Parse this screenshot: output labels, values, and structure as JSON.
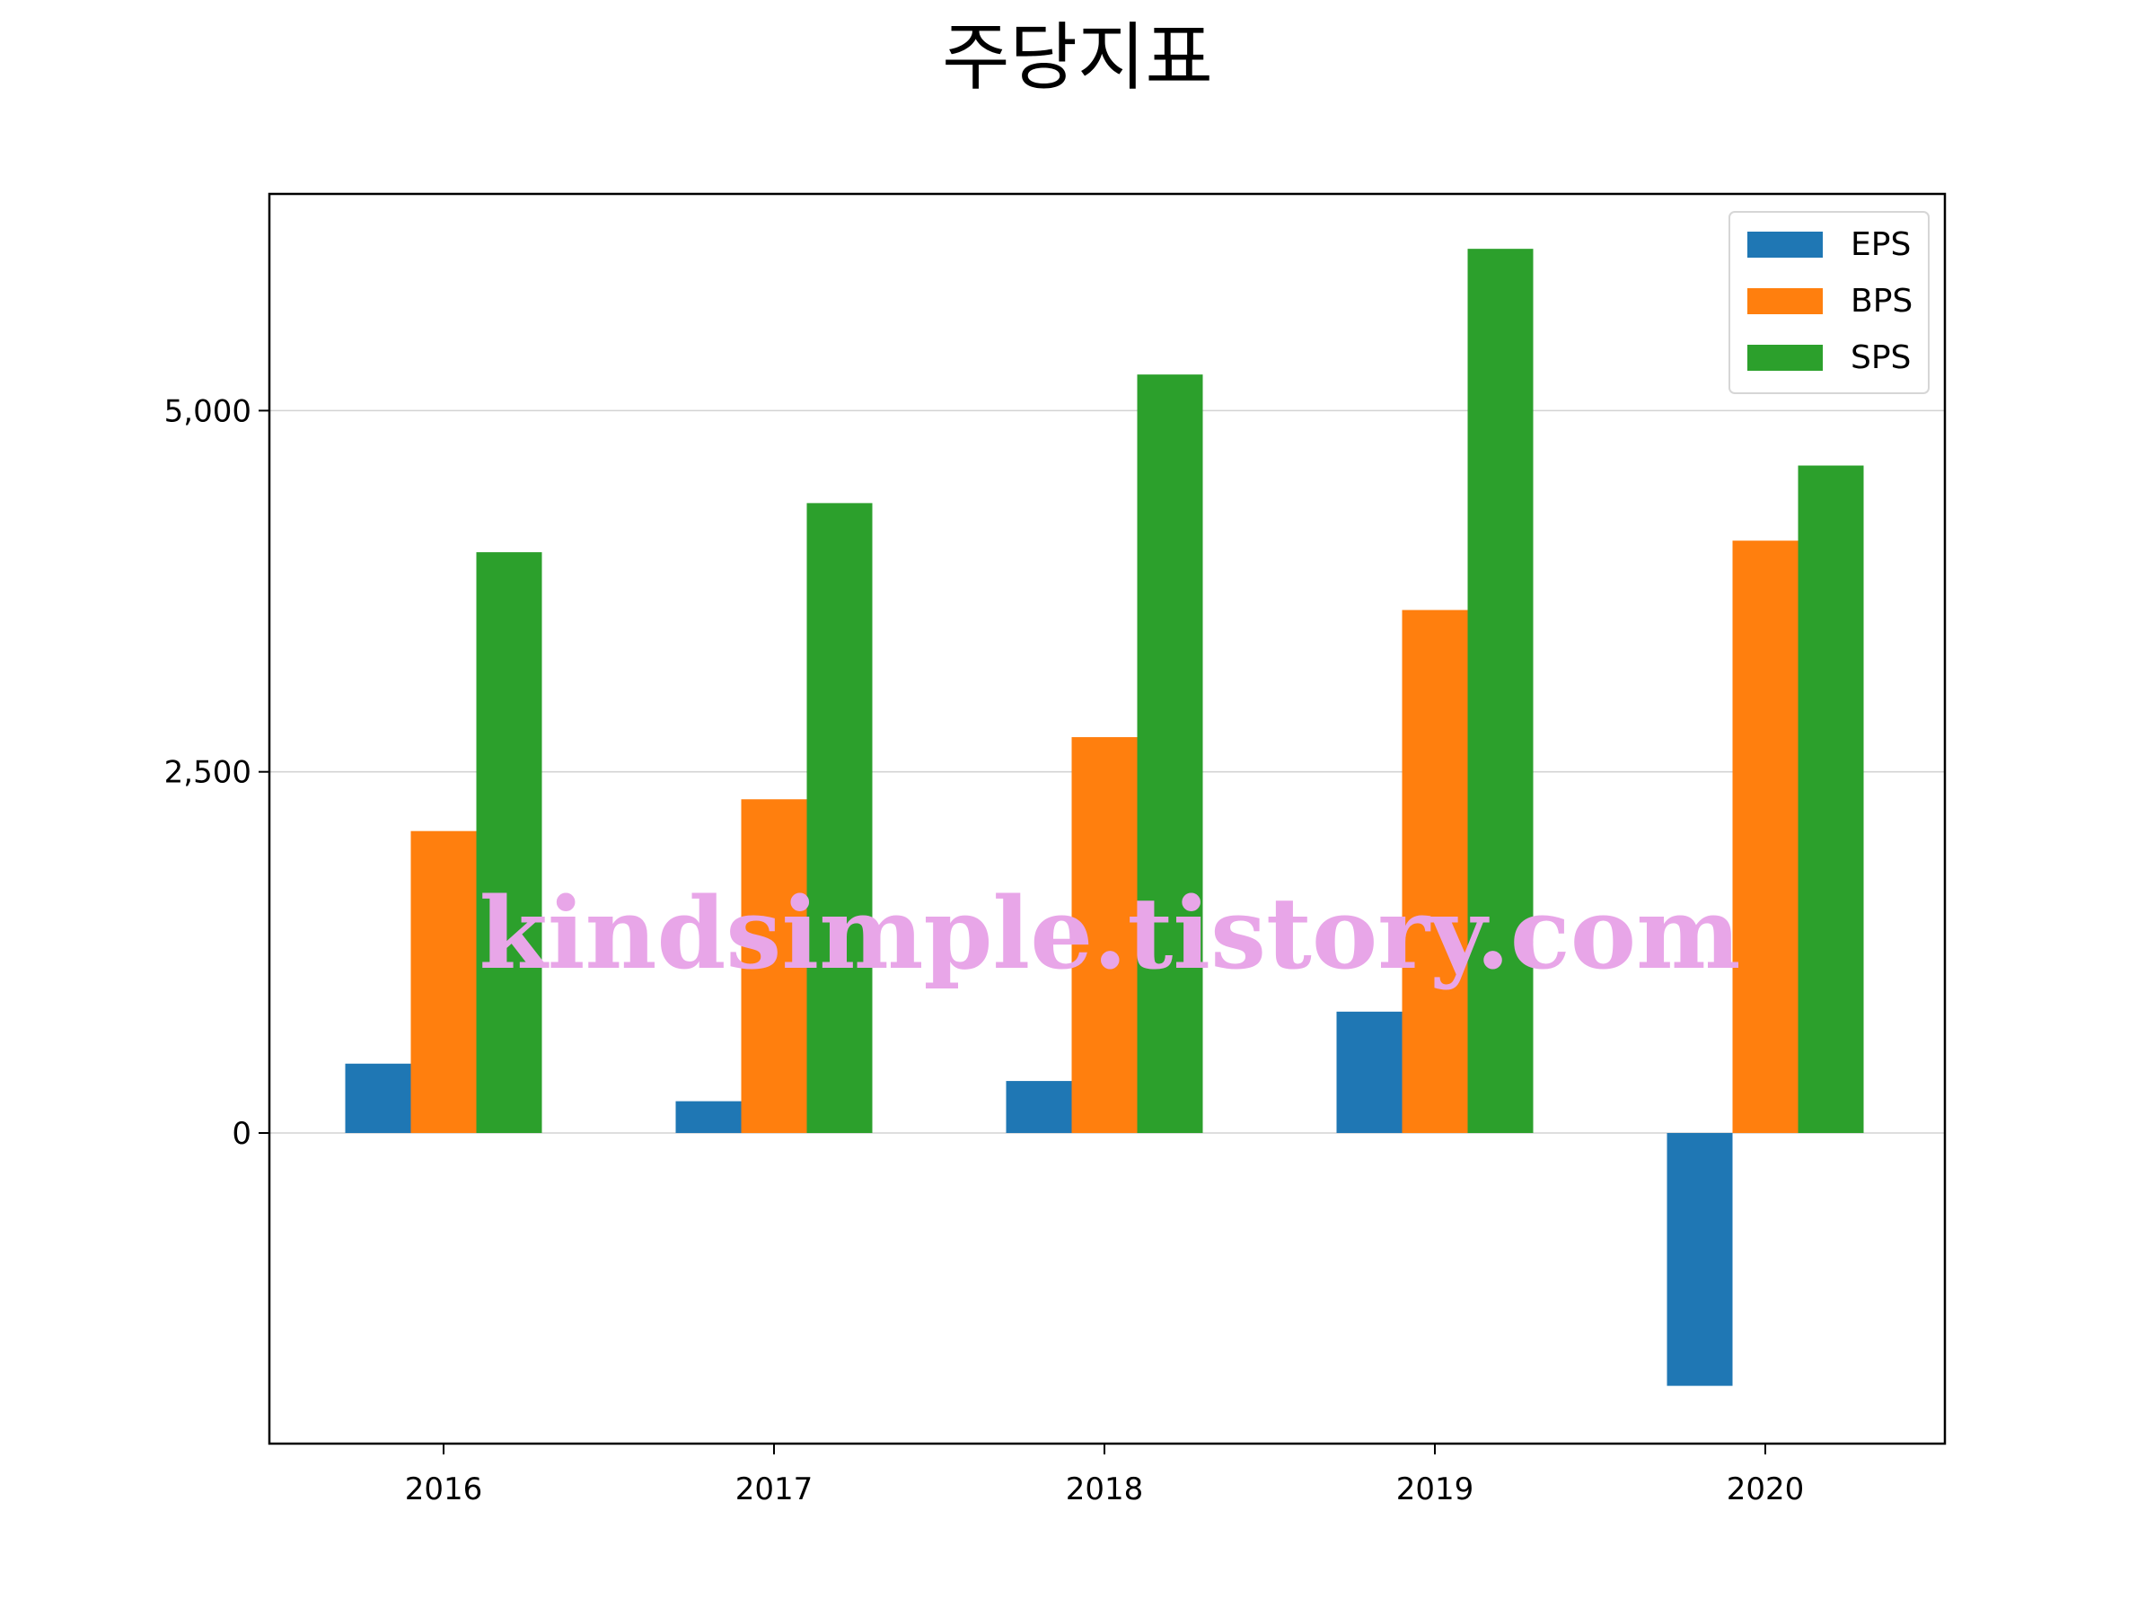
{
  "chart_data": {
    "type": "bar",
    "title": "주당지표",
    "xlabel": "",
    "ylabel": "",
    "categories": [
      "2016",
      "2017",
      "2018",
      "2019",
      "2020"
    ],
    "series": [
      {
        "name": "EPS",
        "values": [
          480,
          220,
          360,
          840,
          -1750
        ],
        "color": "#1f77b4"
      },
      {
        "name": "BPS",
        "values": [
          2090,
          2310,
          2740,
          3620,
          4100
        ],
        "color": "#ff7f0e"
      },
      {
        "name": "SPS",
        "values": [
          4020,
          4360,
          5250,
          6120,
          4620
        ],
        "color": "#2ca02c"
      }
    ],
    "ylim": [
      -2150,
      6500
    ],
    "yticks": [
      0,
      2500,
      5000
    ],
    "ytick_labels": [
      "0",
      "2,500",
      "5,000"
    ],
    "grid": "horizontal",
    "legend_position": "top-right",
    "watermark": "kindsimple.tistory.com",
    "watermark_color": "#e8a6e8"
  }
}
